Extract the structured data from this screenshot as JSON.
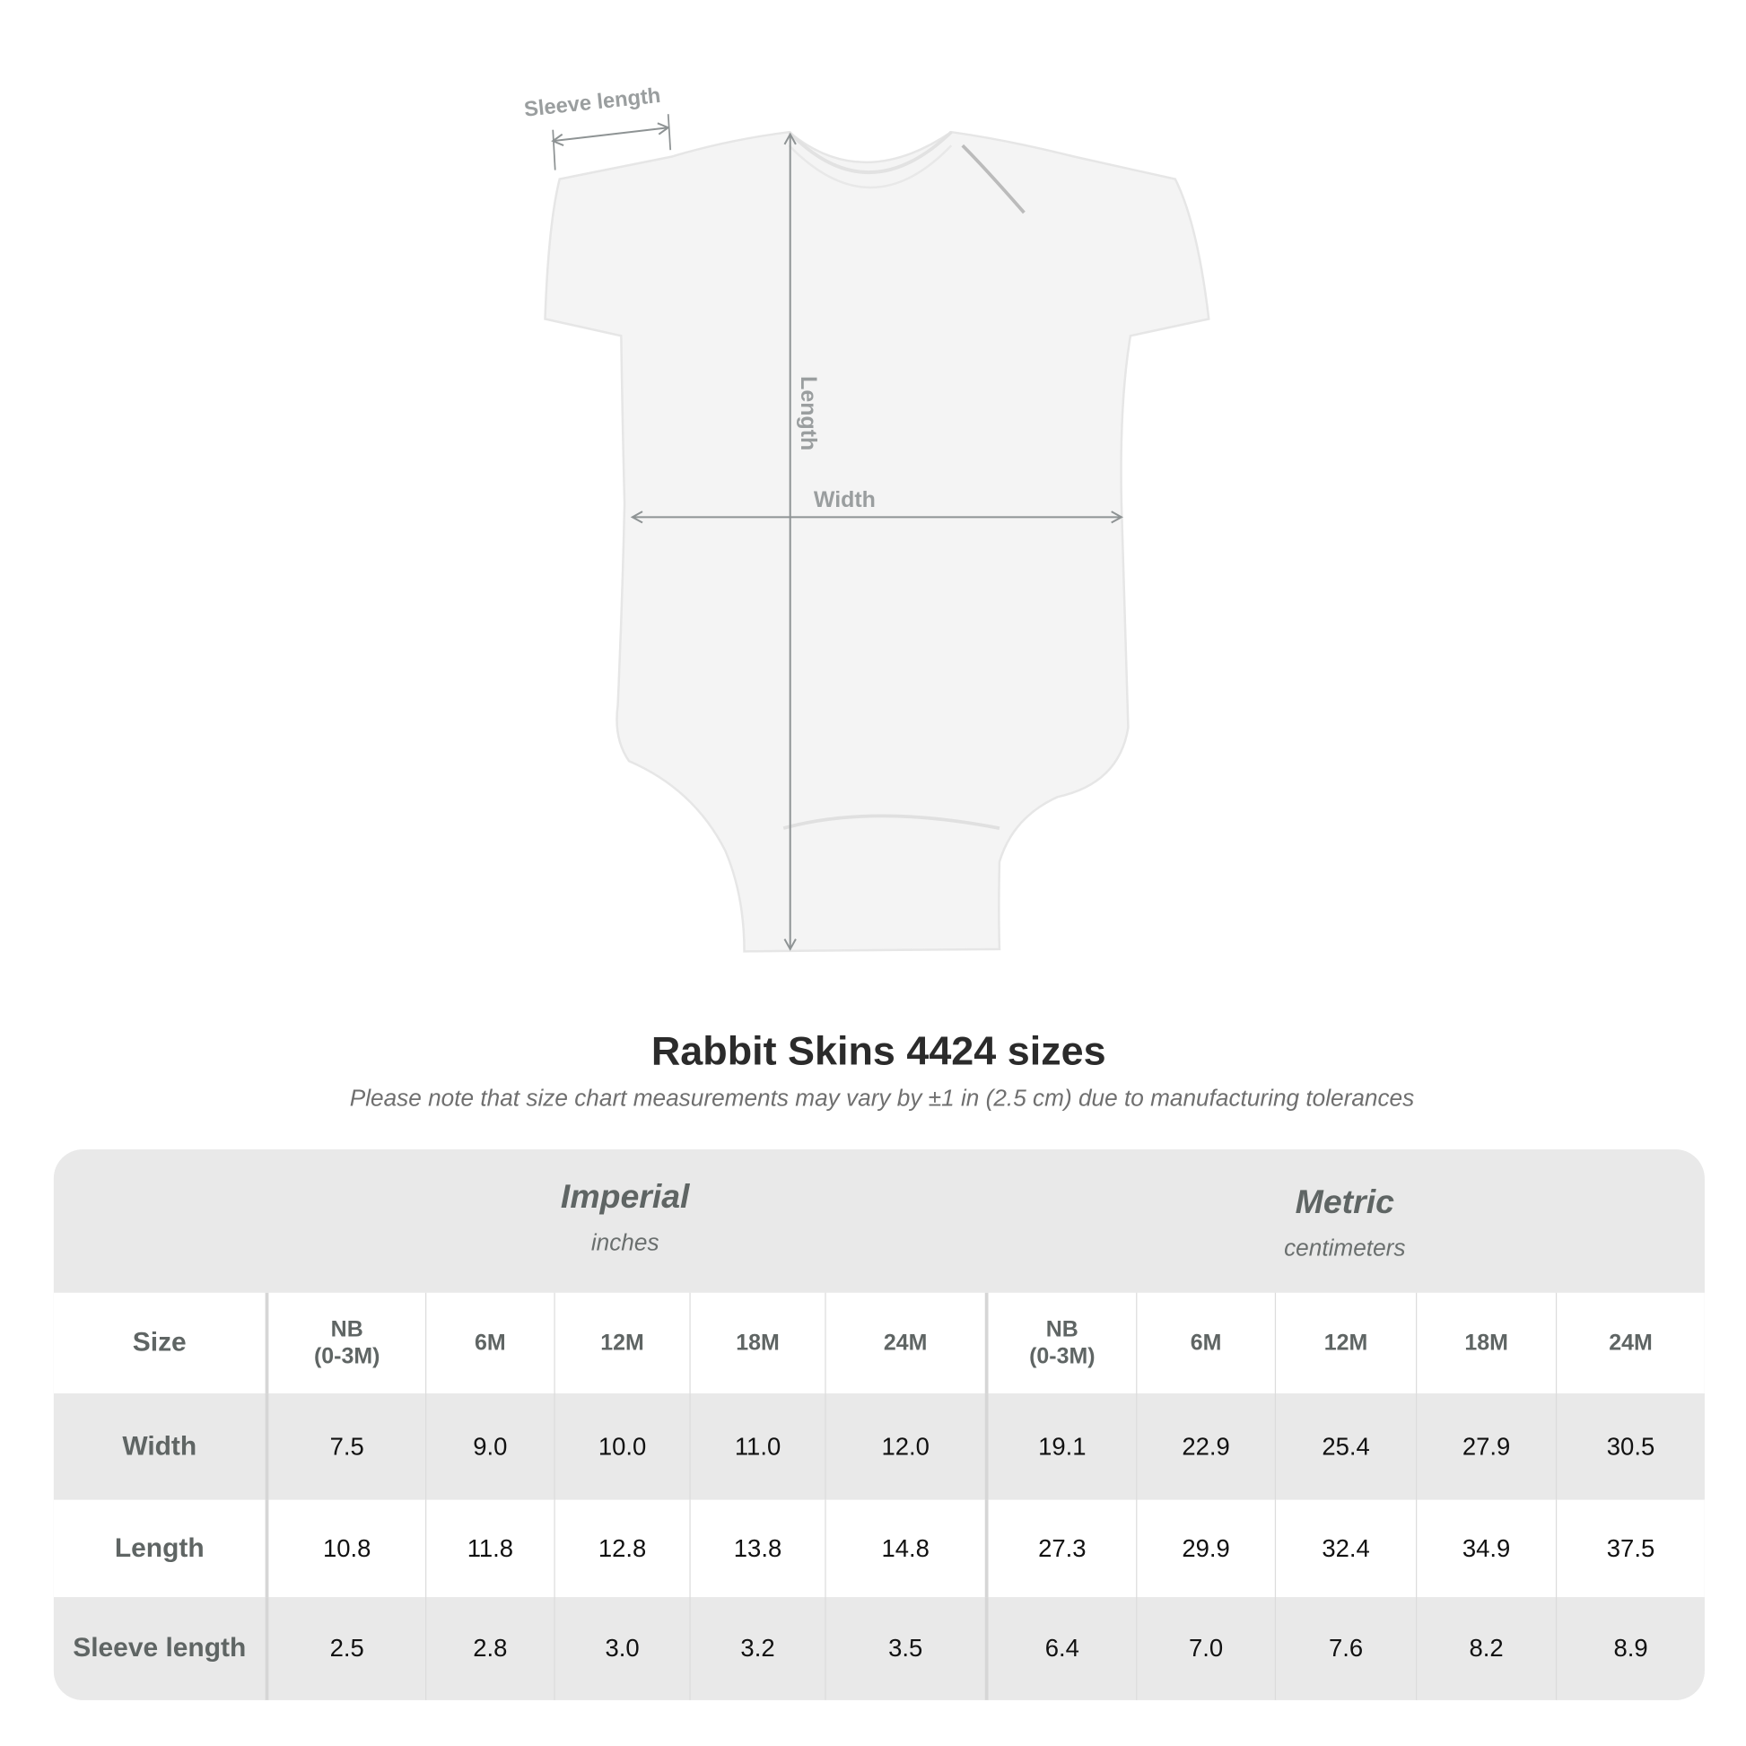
{
  "diagram": {
    "sleeve_label": "Sleeve length",
    "length_label": "Length",
    "width_label": "Width"
  },
  "title": "Rabbit Skins 4424 sizes",
  "note": "Please note that size chart measurements may vary by ±1 in (2.5 cm) due to manufacturing tolerances",
  "table": {
    "imperial": {
      "name": "Imperial",
      "unit": "inches"
    },
    "metric": {
      "name": "Metric",
      "unit": "centimeters"
    },
    "size_label": "Size",
    "sizes": [
      "NB\n(0-3M)",
      "6M",
      "12M",
      "18M",
      "24M"
    ],
    "rows": [
      {
        "label": "Width",
        "imperial": [
          "7.5",
          "9.0",
          "10.0",
          "11.0",
          "12.0"
        ],
        "metric": [
          "19.1",
          "22.9",
          "25.4",
          "27.9",
          "30.5"
        ]
      },
      {
        "label": "Length",
        "imperial": [
          "10.8",
          "11.8",
          "12.8",
          "13.8",
          "14.8"
        ],
        "metric": [
          "27.3",
          "29.9",
          "32.4",
          "34.9",
          "37.5"
        ]
      },
      {
        "label": "Sleeve length",
        "imperial": [
          "2.5",
          "2.8",
          "3.0",
          "3.2",
          "3.5"
        ],
        "metric": [
          "6.4",
          "7.0",
          "7.6",
          "8.2",
          "8.9"
        ]
      }
    ]
  }
}
